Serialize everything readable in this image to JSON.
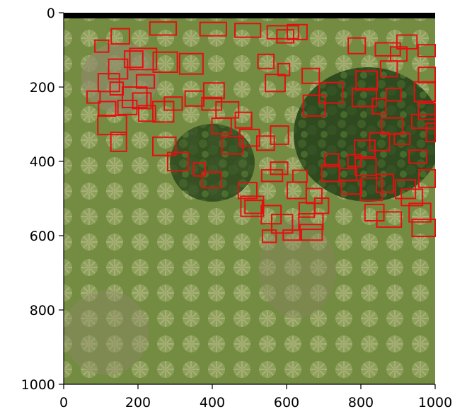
{
  "axes": {
    "x_ticks": [
      {
        "value": 0,
        "label": "0"
      },
      {
        "value": 200,
        "label": "200"
      },
      {
        "value": 400,
        "label": "400"
      },
      {
        "value": 600,
        "label": "600"
      },
      {
        "value": 800,
        "label": "800"
      },
      {
        "value": 1000,
        "label": "1000"
      }
    ],
    "y_ticks": [
      {
        "value": 0,
        "label": "0"
      },
      {
        "value": 200,
        "label": "200"
      },
      {
        "value": 400,
        "label": "400"
      },
      {
        "value": 600,
        "label": "600"
      },
      {
        "value": 800,
        "label": "800"
      },
      {
        "value": 1000,
        "label": "1000"
      }
    ],
    "xlim": [
      0,
      1000
    ],
    "ylim": [
      1000,
      0
    ]
  },
  "image": {
    "description_colors": {
      "ground": "#7d8f45",
      "dark_canopy": "#2f4a1f",
      "palm": "#a9b888",
      "bare_soil": "#8f8a6a"
    },
    "top_band_color": "#000000"
  },
  "detections": {
    "box_color": "#e41010",
    "boxes": [
      [
        232,
        25,
        303,
        60
      ],
      [
        367,
        26,
        438,
        62
      ],
      [
        461,
        29,
        530,
        66
      ],
      [
        548,
        35,
        632,
        70
      ],
      [
        574,
        46,
        619,
        81
      ],
      [
        602,
        32,
        655,
        72
      ],
      [
        178,
        96,
        250,
        153
      ],
      [
        241,
        106,
        306,
        160
      ],
      [
        312,
        110,
        375,
        165
      ],
      [
        523,
        112,
        566,
        150
      ],
      [
        543,
        166,
        596,
        212
      ],
      [
        577,
        137,
        608,
        169
      ],
      [
        158,
        200,
        224,
        255
      ],
      [
        240,
        239,
        296,
        294
      ],
      [
        92,
        276,
        169,
        328
      ],
      [
        127,
        322,
        169,
        373
      ],
      [
        240,
        335,
        302,
        384
      ],
      [
        280,
        376,
        335,
        425
      ],
      [
        350,
        404,
        381,
        439
      ],
      [
        372,
        429,
        425,
        471
      ],
      [
        470,
        457,
        520,
        500
      ],
      [
        477,
        494,
        538,
        548
      ],
      [
        533,
        423,
        589,
        454
      ],
      [
        557,
        402,
        603,
        435
      ],
      [
        532,
        519,
        585,
        568
      ],
      [
        488,
        505,
        535,
        540
      ],
      [
        560,
        543,
        616,
        593
      ],
      [
        602,
        456,
        653,
        500
      ],
      [
        535,
        585,
        572,
        618
      ],
      [
        636,
        570,
        696,
        612
      ],
      [
        617,
        424,
        655,
        456
      ],
      [
        676,
        499,
        713,
        540
      ],
      [
        634,
        511,
        675,
        550
      ],
      [
        633,
        541,
        698,
        583
      ],
      [
        591,
        585,
        640,
        612
      ],
      [
        695,
        409,
        743,
        454
      ],
      [
        742,
        419,
        788,
        452
      ],
      [
        748,
        451,
        802,
        488
      ],
      [
        703,
        380,
        740,
        414
      ],
      [
        653,
        473,
        695,
        513
      ],
      [
        765,
        382,
        801,
        414
      ],
      [
        783,
        343,
        838,
        388
      ],
      [
        785,
        392,
        841,
        438
      ],
      [
        799,
        445,
        857,
        505
      ],
      [
        842,
        435,
        888,
        483
      ],
      [
        893,
        450,
        947,
        500
      ],
      [
        811,
        516,
        862,
        560
      ],
      [
        843,
        536,
        909,
        577
      ],
      [
        909,
        475,
        966,
        519
      ],
      [
        930,
        513,
        988,
        563
      ],
      [
        938,
        556,
        1000,
        602
      ],
      [
        956,
        423,
        1000,
        470
      ],
      [
        1000,
        436,
        1000,
        456
      ],
      [
        824,
        323,
        877,
        371
      ],
      [
        890,
        325,
        932,
        354
      ],
      [
        930,
        370,
        977,
        405
      ],
      [
        976,
        298,
        1000,
        347
      ],
      [
        937,
        274,
        1000,
        311
      ],
      [
        955,
        244,
        1000,
        287
      ],
      [
        944,
        186,
        1000,
        239
      ],
      [
        955,
        147,
        1000,
        188
      ],
      [
        1000,
        146,
        1000,
        146
      ],
      [
        954,
        86,
        1000,
        118
      ],
      [
        880,
        92,
        924,
        130
      ],
      [
        766,
        68,
        812,
        110
      ],
      [
        839,
        81,
        906,
        116
      ],
      [
        897,
        60,
        951,
        97
      ],
      [
        853,
        130,
        898,
        172
      ],
      [
        831,
        231,
        867,
        272
      ],
      [
        856,
        283,
        912,
        327
      ],
      [
        868,
        204,
        908,
        237
      ],
      [
        777,
        204,
        842,
        252
      ],
      [
        787,
        157,
        844,
        208
      ],
      [
        688,
        188,
        751,
        243
      ],
      [
        645,
        222,
        704,
        278
      ],
      [
        642,
        150,
        688,
        190
      ],
      [
        557,
        305,
        605,
        354
      ],
      [
        520,
        332,
        567,
        370
      ],
      [
        474,
        314,
        527,
        359
      ],
      [
        426,
        333,
        483,
        380
      ],
      [
        462,
        268,
        506,
        310
      ],
      [
        399,
        284,
        451,
        326
      ],
      [
        410,
        240,
        471,
        283
      ],
      [
        377,
        189,
        432,
        231
      ],
      [
        372,
        228,
        425,
        262
      ],
      [
        327,
        211,
        377,
        251
      ],
      [
        271,
        227,
        319,
        262
      ],
      [
        196,
        167,
        244,
        203
      ],
      [
        186,
        216,
        235,
        258
      ],
      [
        202,
        250,
        247,
        292
      ],
      [
        146,
        236,
        197,
        274
      ],
      [
        94,
        239,
        140,
        278
      ],
      [
        125,
        187,
        160,
        221
      ],
      [
        93,
        164,
        150,
        212
      ],
      [
        63,
        211,
        98,
        243
      ],
      [
        121,
        125,
        172,
        178
      ],
      [
        164,
        103,
        213,
        147
      ],
      [
        84,
        74,
        121,
        106
      ],
      [
        128,
        43,
        177,
        84
      ]
    ]
  }
}
